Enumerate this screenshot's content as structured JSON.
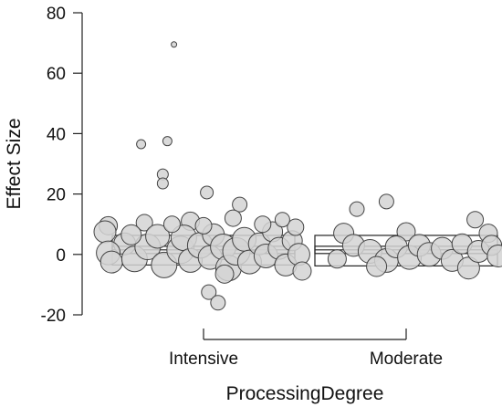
{
  "chart_data": {
    "type": "scatter",
    "xlabel": "ProcessingDegree",
    "ylabel": "Effect Size",
    "ylim": [
      -20,
      80
    ],
    "yticks": [
      -20,
      0,
      20,
      40,
      60,
      80
    ],
    "categories": [
      "Intensive",
      "Moderate"
    ],
    "grid": false,
    "legend": "none",
    "boxes": [
      {
        "category": "Intensive",
        "ci_low": -3.5,
        "ci_high": 6.3,
        "inner_low": 0.3,
        "inner_high": 2.7,
        "median": 1.5
      },
      {
        "category": "Moderate",
        "ci_low": -3.8,
        "ci_high": 6.3,
        "inner_low": 0.3,
        "inner_high": 2.7,
        "median": 1.5
      }
    ],
    "series": [
      {
        "category": "Intensive",
        "points": [
          {
            "x": -0.45,
            "y": 69.5,
            "s": 3
          },
          {
            "x": -0.95,
            "y": 36.5,
            "s": 5
          },
          {
            "x": -0.55,
            "y": 37.5,
            "s": 5
          },
          {
            "x": -0.62,
            "y": 26.5,
            "s": 6
          },
          {
            "x": -0.62,
            "y": 23.5,
            "s": 6
          },
          {
            "x": 0.05,
            "y": 20.5,
            "s": 7
          },
          {
            "x": 0.55,
            "y": 16.5,
            "s": 8
          },
          {
            "x": 0.08,
            "y": -12.5,
            "s": 8
          },
          {
            "x": 0.22,
            "y": -16.0,
            "s": 8
          },
          {
            "x": -0.2,
            "y": 11.0,
            "s": 10
          },
          {
            "x": 0.45,
            "y": 12.0,
            "s": 9
          },
          {
            "x": -0.9,
            "y": 10.5,
            "s": 9
          },
          {
            "x": -1.45,
            "y": 9.5,
            "s": 10
          },
          {
            "x": -1.5,
            "y": 7.5,
            "s": 12
          },
          {
            "x": -1.2,
            "y": 3.5,
            "s": 12
          },
          {
            "x": -1.45,
            "y": 0.5,
            "s": 13
          },
          {
            "x": -1.4,
            "y": -2.5,
            "s": 12
          },
          {
            "x": -1.05,
            "y": -1.5,
            "s": 14
          },
          {
            "x": -0.85,
            "y": 2.5,
            "s": 14
          },
          {
            "x": -0.7,
            "y": 6.0,
            "s": 13
          },
          {
            "x": -0.6,
            "y": -3.5,
            "s": 14
          },
          {
            "x": -0.35,
            "y": 1.5,
            "s": 15
          },
          {
            "x": -0.3,
            "y": 5.5,
            "s": 14
          },
          {
            "x": -0.2,
            "y": -2.0,
            "s": 13
          },
          {
            "x": -0.05,
            "y": 3.0,
            "s": 14
          },
          {
            "x": 0.1,
            "y": -1.0,
            "s": 13
          },
          {
            "x": 0.15,
            "y": 6.5,
            "s": 12
          },
          {
            "x": 0.3,
            "y": 2.5,
            "s": 14
          },
          {
            "x": 0.38,
            "y": -4.5,
            "s": 14
          },
          {
            "x": 0.5,
            "y": 1.0,
            "s": 15
          },
          {
            "x": 0.62,
            "y": 5.0,
            "s": 13
          },
          {
            "x": 0.7,
            "y": -2.5,
            "s": 13
          },
          {
            "x": 0.85,
            "y": 3.5,
            "s": 12
          },
          {
            "x": 0.95,
            "y": -0.5,
            "s": 13
          },
          {
            "x": 1.05,
            "y": 7.5,
            "s": 11
          },
          {
            "x": 1.15,
            "y": 2.0,
            "s": 12
          },
          {
            "x": 1.25,
            "y": -3.5,
            "s": 12
          },
          {
            "x": 1.35,
            "y": 4.5,
            "s": 11
          },
          {
            "x": 1.45,
            "y": 0.0,
            "s": 12
          },
          {
            "x": 1.5,
            "y": -5.5,
            "s": 10
          },
          {
            "x": 1.4,
            "y": 9.0,
            "s": 9
          },
          {
            "x": -0.48,
            "y": 10.0,
            "s": 9
          },
          {
            "x": 0.0,
            "y": 9.5,
            "s": 9
          },
          {
            "x": 0.9,
            "y": 10.0,
            "s": 9
          },
          {
            "x": -1.1,
            "y": 6.5,
            "s": 11
          },
          {
            "x": 1.2,
            "y": 11.5,
            "s": 8
          },
          {
            "x": 0.32,
            "y": -6.5,
            "s": 10
          }
        ]
      },
      {
        "category": "Moderate",
        "points": [
          {
            "x": -0.75,
            "y": 15.0,
            "s": 8
          },
          {
            "x": -0.3,
            "y": 17.5,
            "s": 8
          },
          {
            "x": 1.05,
            "y": 11.5,
            "s": 9
          },
          {
            "x": -0.95,
            "y": 7.0,
            "s": 11
          },
          {
            "x": 0.0,
            "y": 7.5,
            "s": 10
          },
          {
            "x": 1.25,
            "y": 7.0,
            "s": 10
          },
          {
            "x": -0.8,
            "y": 3.0,
            "s": 12
          },
          {
            "x": -0.55,
            "y": 1.0,
            "s": 13
          },
          {
            "x": -0.3,
            "y": -2.0,
            "s": 13
          },
          {
            "x": -0.15,
            "y": 2.5,
            "s": 12
          },
          {
            "x": 0.05,
            "y": -1.0,
            "s": 13
          },
          {
            "x": 0.2,
            "y": 3.0,
            "s": 12
          },
          {
            "x": 0.35,
            "y": 0.0,
            "s": 13
          },
          {
            "x": 0.55,
            "y": 2.0,
            "s": 12
          },
          {
            "x": 0.7,
            "y": -2.0,
            "s": 12
          },
          {
            "x": 0.85,
            "y": 3.5,
            "s": 11
          },
          {
            "x": 0.95,
            "y": -4.5,
            "s": 12
          },
          {
            "x": 1.1,
            "y": 1.0,
            "s": 12
          },
          {
            "x": 1.3,
            "y": 3.0,
            "s": 11
          },
          {
            "x": 1.4,
            "y": -0.5,
            "s": 12
          },
          {
            "x": -0.45,
            "y": -4.0,
            "s": 11
          },
          {
            "x": -1.05,
            "y": -1.5,
            "s": 10
          }
        ]
      }
    ]
  }
}
